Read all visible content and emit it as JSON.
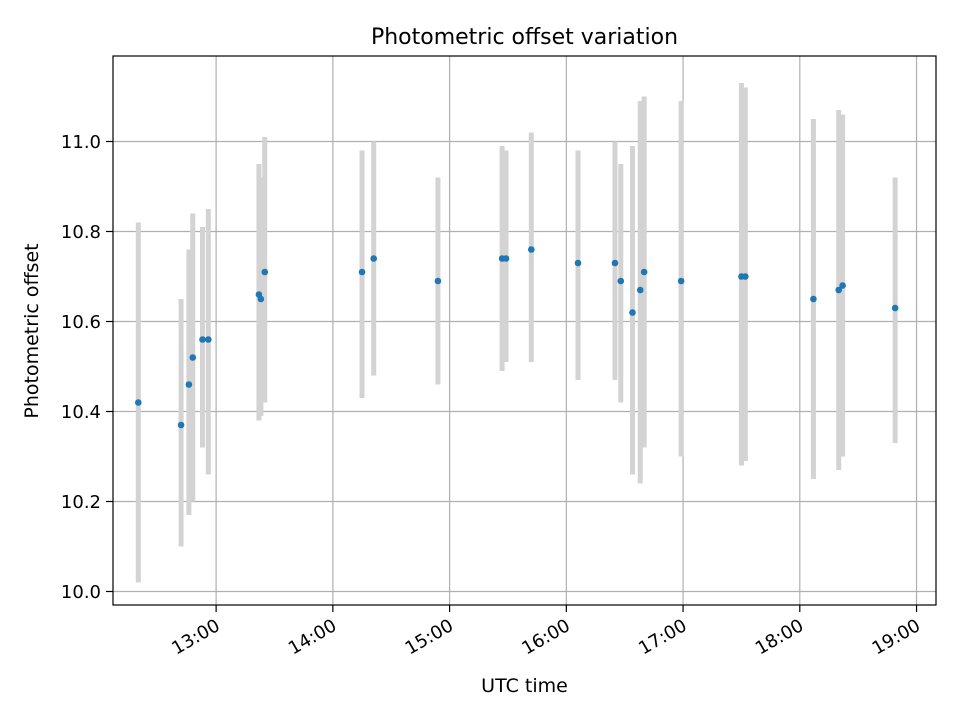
{
  "chart_data": {
    "type": "scatter",
    "title": "Photometric offset variation",
    "xlabel": "UTC time",
    "ylabel": "Photometric offset",
    "x_unit": "UTC time (HH:MM)",
    "xlim": [
      "12:07",
      "19:10"
    ],
    "ylim": [
      9.97,
      11.19
    ],
    "xticks": [
      "13:00",
      "14:00",
      "15:00",
      "16:00",
      "17:00",
      "18:00",
      "19:00"
    ],
    "yticks": [
      10.0,
      10.2,
      10.4,
      10.6,
      10.8,
      11.0
    ],
    "ytick_labels": [
      "10.0",
      "10.2",
      "10.4",
      "10.6",
      "10.8",
      "11.0"
    ],
    "grid": true,
    "legend": "none",
    "colors": {
      "points": "#1f77b4",
      "errorbars": "#d3d3d3",
      "grid": "#b0b0b0"
    },
    "points": [
      {
        "x": "12:20",
        "y": 10.42,
        "ylow": 10.02,
        "yhigh": 10.82
      },
      {
        "x": "12:42",
        "y": 10.37,
        "ylow": 10.1,
        "yhigh": 10.65
      },
      {
        "x": "12:46",
        "y": 10.46,
        "ylow": 10.17,
        "yhigh": 10.76
      },
      {
        "x": "12:48",
        "y": 10.52,
        "ylow": 10.2,
        "yhigh": 10.84
      },
      {
        "x": "12:53",
        "y": 10.56,
        "ylow": 10.32,
        "yhigh": 10.81
      },
      {
        "x": "12:56",
        "y": 10.56,
        "ylow": 10.26,
        "yhigh": 10.85
      },
      {
        "x": "13:22",
        "y": 10.66,
        "ylow": 10.38,
        "yhigh": 10.95
      },
      {
        "x": "13:23",
        "y": 10.65,
        "ylow": 10.39,
        "yhigh": 10.92
      },
      {
        "x": "13:25",
        "y": 10.71,
        "ylow": 10.42,
        "yhigh": 11.01
      },
      {
        "x": "14:15",
        "y": 10.71,
        "ylow": 10.43,
        "yhigh": 10.98
      },
      {
        "x": "14:21",
        "y": 10.74,
        "ylow": 10.48,
        "yhigh": 11.0
      },
      {
        "x": "14:54",
        "y": 10.69,
        "ylow": 10.46,
        "yhigh": 10.92
      },
      {
        "x": "15:27",
        "y": 10.74,
        "ylow": 10.49,
        "yhigh": 10.99
      },
      {
        "x": "15:29",
        "y": 10.74,
        "ylow": 10.51,
        "yhigh": 10.98
      },
      {
        "x": "15:42",
        "y": 10.76,
        "ylow": 10.51,
        "yhigh": 11.02
      },
      {
        "x": "16:06",
        "y": 10.73,
        "ylow": 10.47,
        "yhigh": 10.98
      },
      {
        "x": "16:25",
        "y": 10.73,
        "ylow": 10.47,
        "yhigh": 11.0
      },
      {
        "x": "16:28",
        "y": 10.69,
        "ylow": 10.42,
        "yhigh": 10.95
      },
      {
        "x": "16:34",
        "y": 10.62,
        "ylow": 10.26,
        "yhigh": 10.99
      },
      {
        "x": "16:38",
        "y": 10.67,
        "ylow": 10.24,
        "yhigh": 11.09
      },
      {
        "x": "16:40",
        "y": 10.71,
        "ylow": 10.32,
        "yhigh": 11.1
      },
      {
        "x": "16:59",
        "y": 10.69,
        "ylow": 10.3,
        "yhigh": 11.09
      },
      {
        "x": "17:30",
        "y": 10.7,
        "ylow": 10.28,
        "yhigh": 11.13
      },
      {
        "x": "17:32",
        "y": 10.7,
        "ylow": 10.29,
        "yhigh": 11.12
      },
      {
        "x": "18:07",
        "y": 10.65,
        "ylow": 10.25,
        "yhigh": 11.05
      },
      {
        "x": "18:20",
        "y": 10.67,
        "ylow": 10.27,
        "yhigh": 11.07
      },
      {
        "x": "18:22",
        "y": 10.68,
        "ylow": 10.3,
        "yhigh": 11.06
      },
      {
        "x": "18:49",
        "y": 10.63,
        "ylow": 10.33,
        "yhigh": 10.92
      }
    ]
  }
}
